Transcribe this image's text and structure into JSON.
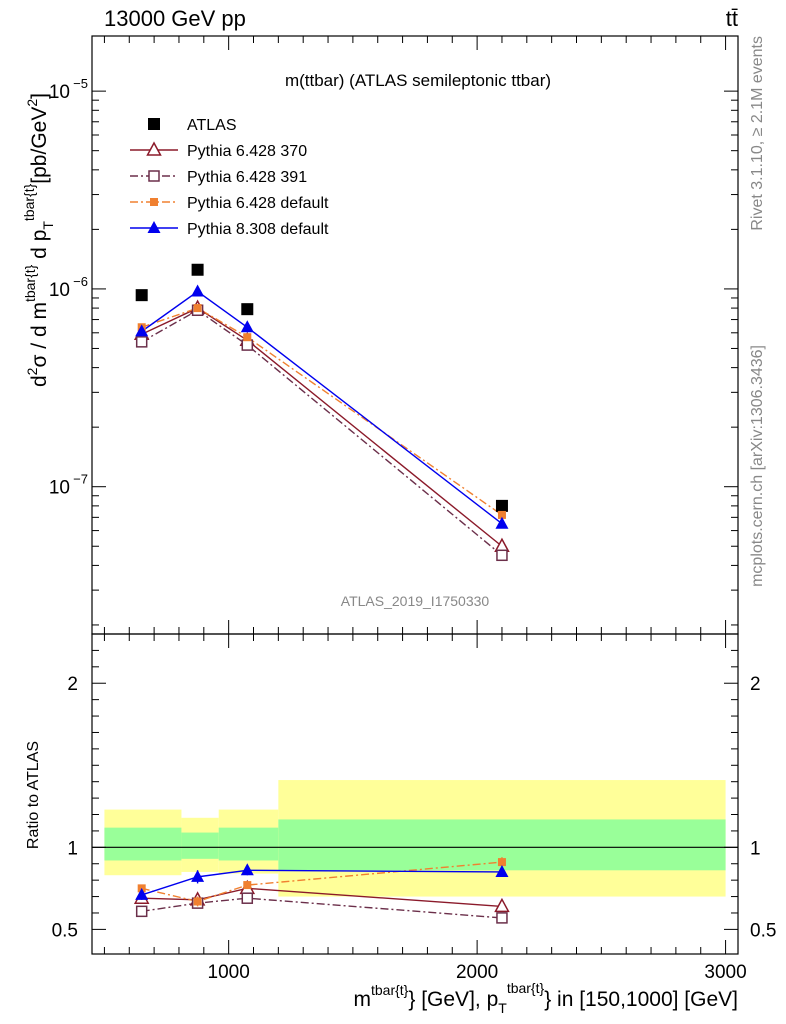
{
  "header": {
    "left": "13000 GeV pp",
    "right": "tt̄"
  },
  "side": {
    "top": "Rivet 3.1.10, ≥ 2.1M events",
    "bottom": "mcplots.cern.ch [arXiv:1306.3436]"
  },
  "chart_data": [
    {
      "type": "scatter",
      "title": "m(ttbar) (ATLAS semileptonic ttbar)",
      "watermark": "ATLAS_2019_I1750330",
      "ylabel": "d²σ / d m^{tbar{t}} d p_T^{tbar{t}} [pb/GeV²]",
      "yscale": "log",
      "ylim": [
        1.8e-08,
        1.9e-05
      ],
      "xlim": [
        450,
        3050
      ],
      "yticks": [
        {
          "value": 1e-07,
          "base": "10",
          "exp": "−7"
        },
        {
          "value": 1e-06,
          "base": "10",
          "exp": "−6"
        },
        {
          "value": 1e-05,
          "base": "10",
          "exp": "−5"
        }
      ],
      "legend_position": "top-left",
      "series": [
        {
          "name": "ATLAS",
          "color": "#000000",
          "marker": "square-filled",
          "line": "none",
          "x": [
            650,
            875,
            1075,
            2100
          ],
          "y": [
            9.3e-07,
            1.25e-06,
            7.9e-07,
            8e-08
          ]
        },
        {
          "name": "Pythia 6.428 370",
          "color": "#8b1a2a",
          "marker": "triangle-open",
          "line": "solid",
          "x": [
            650,
            875,
            1075,
            2100
          ],
          "y": [
            5.9e-07,
            8e-07,
            5.5e-07,
            5e-08
          ]
        },
        {
          "name": "Pythia 6.428 391",
          "color": "#6b2f4a",
          "marker": "square-open",
          "line": "dashdot",
          "x": [
            650,
            875,
            1075,
            2100
          ],
          "y": [
            5.4e-07,
            7.8e-07,
            5.2e-07,
            4.5e-08
          ]
        },
        {
          "name": "Pythia 6.428 default",
          "color": "#f08030",
          "marker": "square-filled-small",
          "line": "dashdot",
          "x": [
            650,
            875,
            1075,
            2100
          ],
          "y": [
            6.4e-07,
            8e-07,
            5.7e-07,
            7.2e-08
          ]
        },
        {
          "name": "Pythia 8.308 default",
          "color": "#0000ee",
          "marker": "triangle-filled",
          "line": "solid",
          "x": [
            650,
            875,
            1075,
            2100
          ],
          "y": [
            6.1e-07,
            9.7e-07,
            6.4e-07,
            6.5e-08
          ]
        }
      ]
    },
    {
      "type": "scatter",
      "ylabel": "Ratio to ATLAS",
      "xlabel": "m^{tbar{t}} [GeV], p_T^{tbar{t}} in [150,1000] [GeV]",
      "ylim": [
        0.35,
        2.3
      ],
      "xlim": [
        450,
        3050
      ],
      "xticks": [
        1000,
        2000,
        3000
      ],
      "yticks": [
        0.5,
        1,
        2
      ],
      "ytick_labels": [
        "0.5",
        "1",
        "2"
      ],
      "reference_line": 1,
      "bands": [
        {
          "x0": 500,
          "x1": 810,
          "inner": [
            0.92,
            1.12
          ],
          "outer": [
            0.83,
            1.23
          ]
        },
        {
          "x0": 810,
          "x1": 960,
          "inner": [
            0.93,
            1.09
          ],
          "outer": [
            0.85,
            1.18
          ]
        },
        {
          "x0": 960,
          "x1": 1200,
          "inner": [
            0.92,
            1.12
          ],
          "outer": [
            0.84,
            1.23
          ]
        },
        {
          "x0": 1200,
          "x1": 3000,
          "inner": [
            0.86,
            1.17
          ],
          "outer": [
            0.7,
            1.41
          ]
        }
      ],
      "series": [
        {
          "name": "Pythia 6.428 370",
          "color": "#8b1a2a",
          "marker": "triangle-open",
          "line": "solid",
          "x": [
            650,
            875,
            1075,
            2100
          ],
          "y": [
            0.69,
            0.68,
            0.75,
            0.64
          ],
          "err": [
            0.02,
            0.03,
            0.02,
            0.03
          ]
        },
        {
          "name": "Pythia 6.428 391",
          "color": "#6b2f4a",
          "marker": "square-open",
          "line": "dashdot",
          "x": [
            650,
            875,
            1075,
            2100
          ],
          "y": [
            0.61,
            0.66,
            0.69,
            0.57
          ],
          "err": [
            0.02,
            0.03,
            0.02,
            0.03
          ]
        },
        {
          "name": "Pythia 6.428 default",
          "color": "#f08030",
          "marker": "square-filled-small",
          "line": "dashdot",
          "x": [
            650,
            875,
            1075,
            2100
          ],
          "y": [
            0.75,
            0.67,
            0.77,
            0.91
          ],
          "err": [
            0.02,
            0.03,
            0.02,
            0.03
          ]
        },
        {
          "name": "Pythia 8.308 default",
          "color": "#0000ee",
          "marker": "triangle-filled",
          "line": "solid",
          "x": [
            650,
            875,
            1075,
            2100
          ],
          "y": [
            0.71,
            0.82,
            0.86,
            0.85
          ],
          "err": [
            0.03,
            0.04,
            0.03,
            0.03
          ]
        }
      ]
    }
  ]
}
